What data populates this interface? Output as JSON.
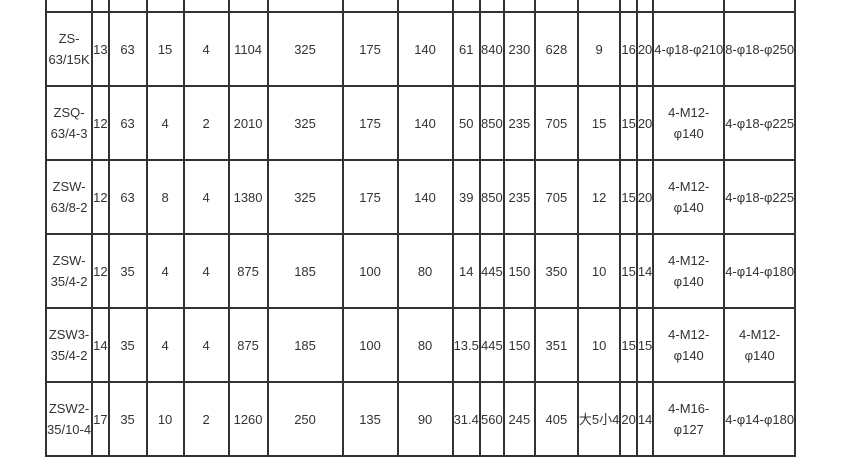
{
  "page": {
    "background": "#ffffff"
  },
  "table": {
    "border_color": "#333333",
    "text_color": "#333333",
    "column_count": 18,
    "rows": [
      {
        "model": "ZS-63/15K",
        "cells": [
          "ZS-\n63/15K",
          "13",
          "63",
          "15",
          "4",
          "1104",
          "325",
          "175",
          "140",
          "61",
          "840",
          "230",
          "628",
          "9",
          "16",
          "20",
          "4-φ18-φ210",
          "8-φ18-φ250"
        ]
      },
      {
        "model": "ZSQ-63/4-3",
        "cells": [
          "ZSQ-\n63/4-3",
          "12",
          "63",
          "4",
          "2",
          "2010",
          "325",
          "175",
          "140",
          "50",
          "850",
          "235",
          "705",
          "15",
          "15",
          "20",
          "4-M12-\nφ140",
          "4-φ18-φ225"
        ]
      },
      {
        "model": "ZSW-63/8-2",
        "cells": [
          "ZSW-\n63/8-2",
          "12",
          "63",
          "8",
          "4",
          "1380",
          "325",
          "175",
          "140",
          "39",
          "850",
          "235",
          "705",
          "12",
          "15",
          "20",
          "4-M12-\nφ140",
          "4-φ18-φ225"
        ]
      },
      {
        "model": "ZSW-35/4-2",
        "cells": [
          "ZSW-\n35/4-2",
          "12",
          "35",
          "4",
          "4",
          "875",
          "185",
          "100",
          "80",
          "14",
          "445",
          "150",
          "350",
          "10",
          "15",
          "14",
          "4-M12-\nφ140",
          "4-φ14-φ180"
        ]
      },
      {
        "model": "ZSW3-35/4-2",
        "cells": [
          "ZSW3-\n35/4-2",
          "14",
          "35",
          "4",
          "4",
          "875",
          "185",
          "100",
          "80",
          "13.5",
          "445",
          "150",
          "351",
          "10",
          "15",
          "15",
          "4-M12-\nφ140",
          "4-M12-\nφ140"
        ]
      },
      {
        "model": "ZSW2-35/10-4",
        "cells": [
          "ZSW2-\n35/10-4",
          "17",
          "35",
          "10",
          "2",
          "1260",
          "250",
          "135",
          "90",
          "31.4",
          "560",
          "245",
          "405",
          "大5小4",
          "20",
          "14",
          "4-M16-\nφ127",
          "4-φ14-φ180"
        ]
      }
    ]
  }
}
